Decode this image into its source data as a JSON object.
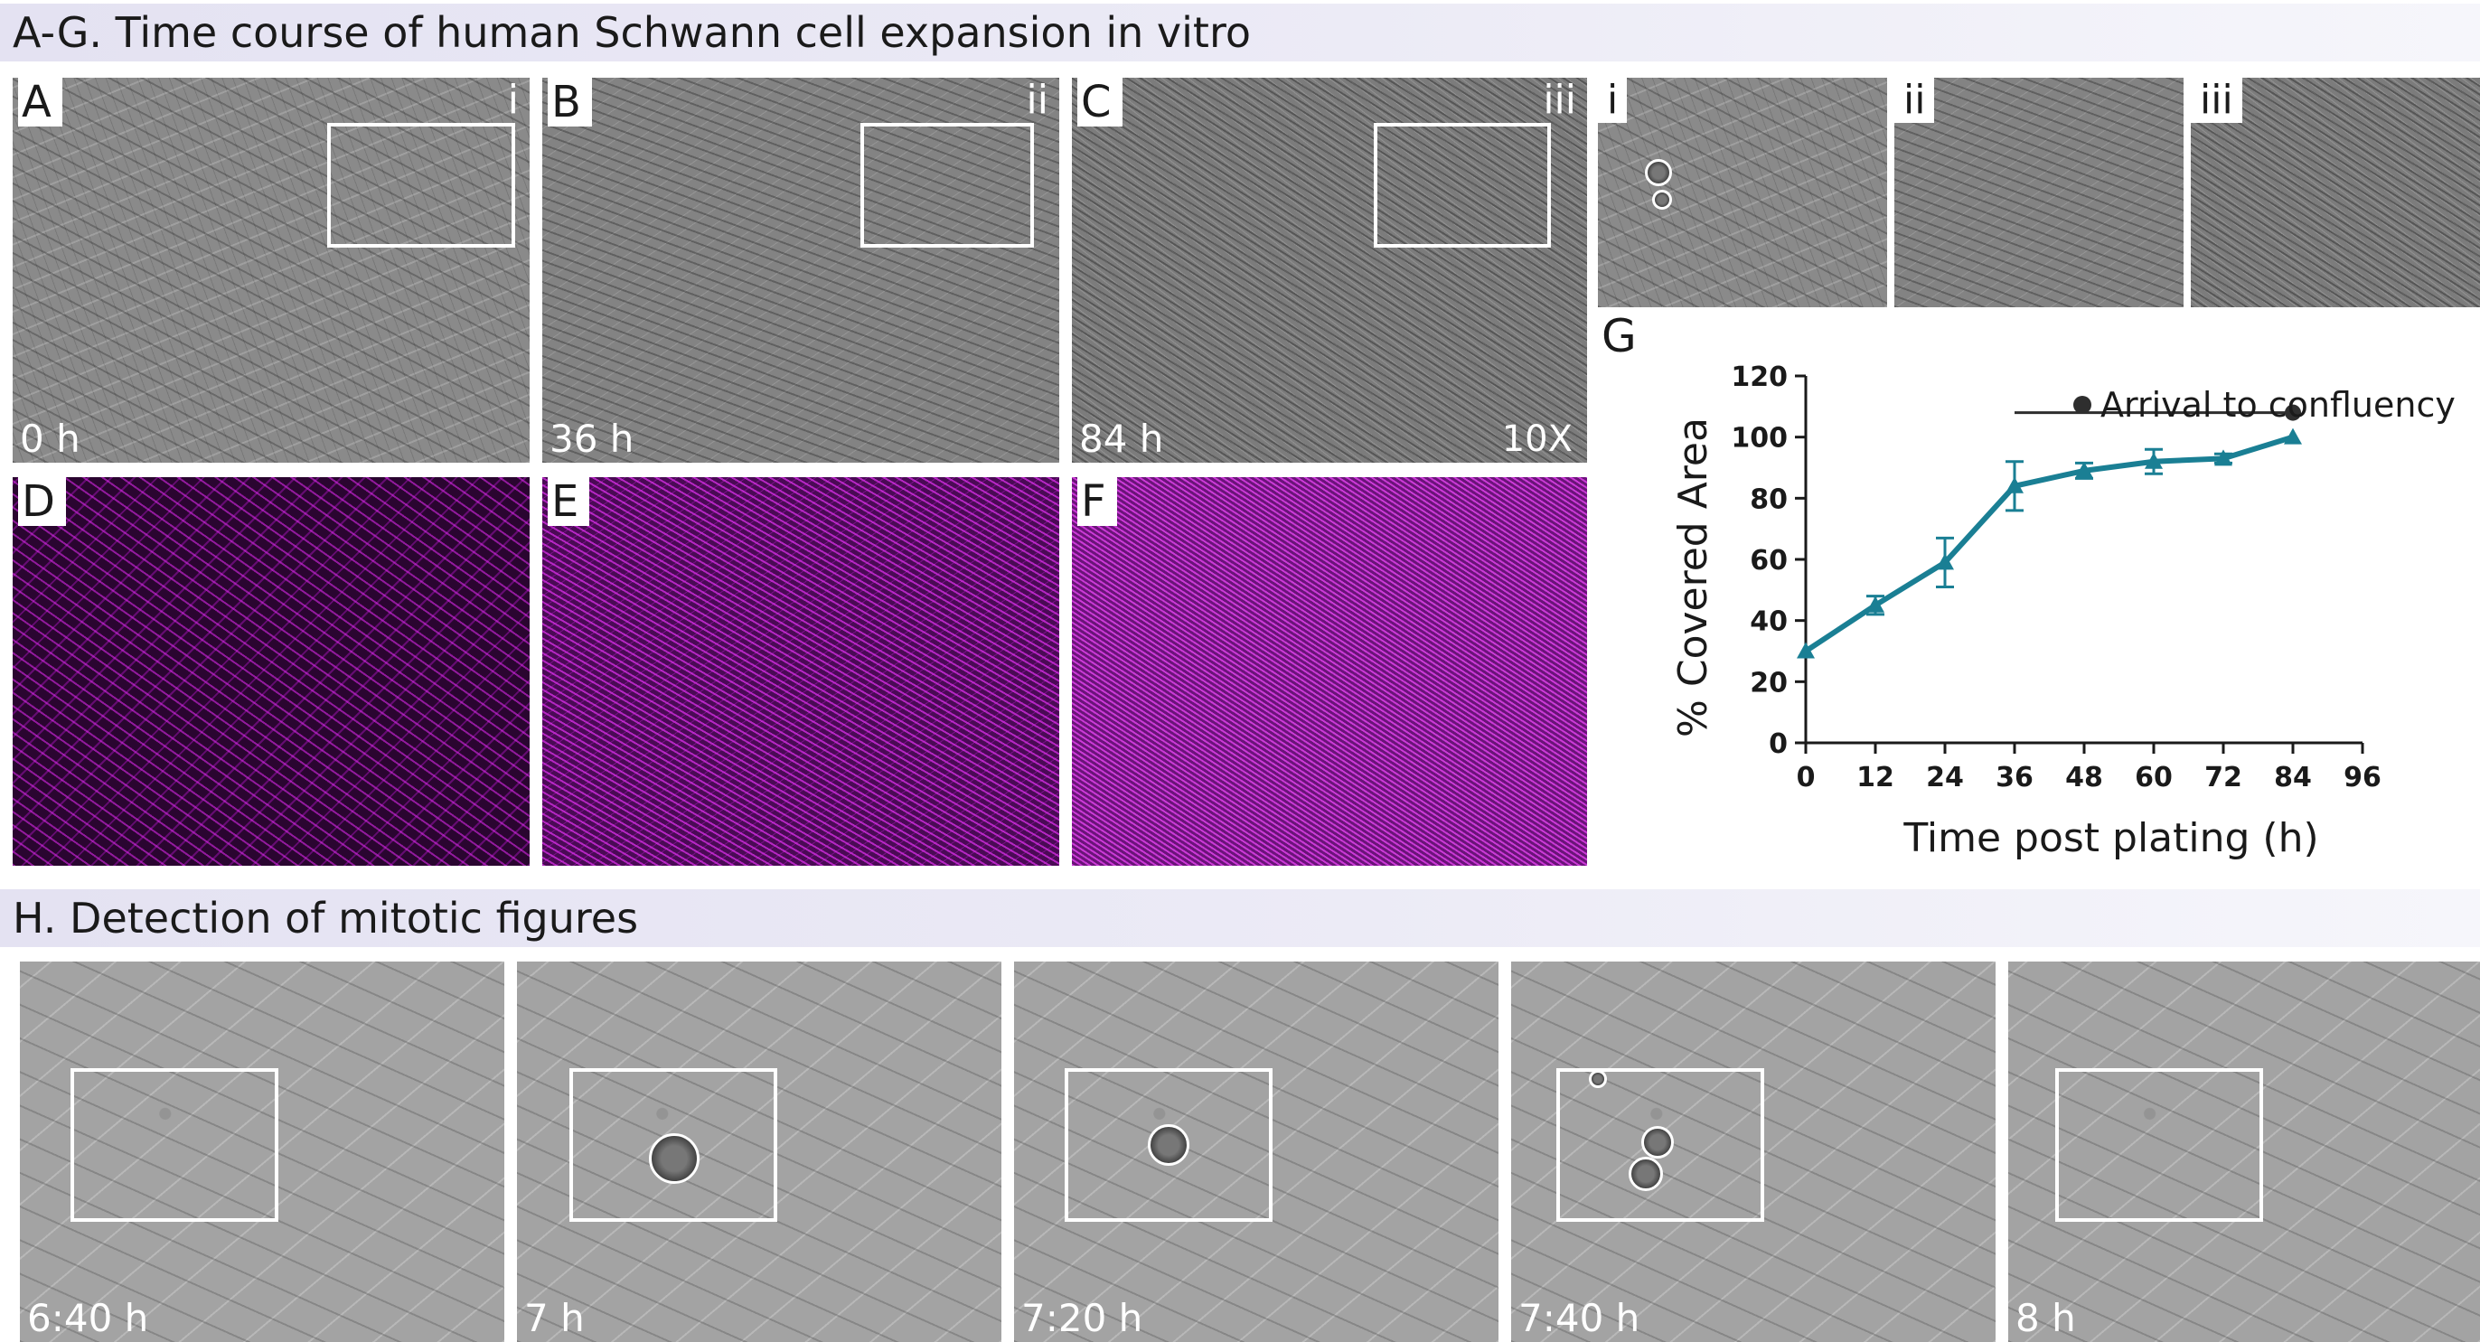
{
  "figure": {
    "section_ag_title": "A-G. Time course of human Schwann cell expansion in vitro",
    "section_h_title": "H.  Detection of mitotic figures"
  },
  "top_panels": [
    {
      "label": "A",
      "inset_label": "i",
      "time": "0 h"
    },
    {
      "label": "B",
      "inset_label": "ii",
      "time": "36 h"
    },
    {
      "label": "C",
      "inset_label": "iii",
      "time": "84 h",
      "magnification": "10X"
    }
  ],
  "fluor_panels": [
    {
      "label": "D"
    },
    {
      "label": "E"
    },
    {
      "label": "F"
    }
  ],
  "zoom_panels": [
    {
      "label": "i"
    },
    {
      "label": "ii"
    },
    {
      "label": "iii"
    }
  ],
  "timelapse_panels": [
    {
      "time": "6:40 h"
    },
    {
      "time": "7 h"
    },
    {
      "time": "7:20 h"
    },
    {
      "time": "7:40 h"
    },
    {
      "time": "8 h"
    }
  ],
  "colors": {
    "line": "#1a7f94",
    "marker": "#2e2e2e",
    "fluor": "#c81ed8"
  },
  "chart_data": {
    "type": "line",
    "panel_label": "G",
    "xlabel": "Time post plating (h)",
    "ylabel": "% Covered Area",
    "xlim": [
      0,
      96
    ],
    "ylim": [
      0,
      120
    ],
    "xticks": [
      0,
      12,
      24,
      36,
      48,
      60,
      72,
      84,
      96
    ],
    "yticks": [
      0,
      20,
      40,
      60,
      80,
      100,
      120
    ],
    "series": [
      {
        "x": [
          0,
          12,
          24,
          36,
          48,
          60,
          72,
          84
        ],
        "y": [
          30,
          45,
          59,
          84,
          89,
          92,
          93,
          100
        ],
        "error": [
          0,
          3,
          8,
          8,
          2.5,
          4,
          1.5,
          0
        ]
      }
    ],
    "annotation": {
      "text": "Arrival to confluency",
      "x_start": 36,
      "x_end": 84,
      "y": 108
    },
    "grid": false,
    "legend": "top-right"
  }
}
